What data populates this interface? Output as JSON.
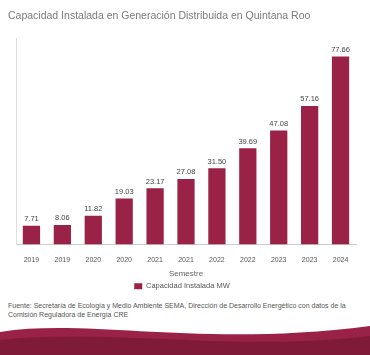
{
  "chart_data": {
    "type": "bar",
    "title": "Capacidad Instalada en Generación Distribuida en Quintana Roo",
    "x_label": "Semestre",
    "source": "Fuente: Secretaría de Ecología y Medio Ambiente SEMA, Dirección de Desarrollo Energético con datos de la Comisión Reguladora de Energía CRE",
    "categories": [
      "2019",
      "2019",
      "2020",
      "2020",
      "2021",
      "2021",
      "2022",
      "2022",
      "2023",
      "2023",
      "2024"
    ],
    "series": [
      {
        "name": "Capacidad Instalada MW",
        "color": "#9b2247",
        "values": [
          7.71,
          8.06,
          11.82,
          19.03,
          23.17,
          27.08,
          31.5,
          39.69,
          47.08,
          57.16,
          77.66
        ],
        "value_labels": [
          "7.71",
          "8.06",
          "11.82",
          "19.03",
          "23.17",
          "27.08",
          "31.50",
          "39.69",
          "47.08",
          "57.16",
          "77.66"
        ]
      }
    ],
    "ylim": [
      0,
      85
    ],
    "grid": false,
    "legend": "bottom",
    "data_labels": true,
    "tick_labels": "x"
  }
}
